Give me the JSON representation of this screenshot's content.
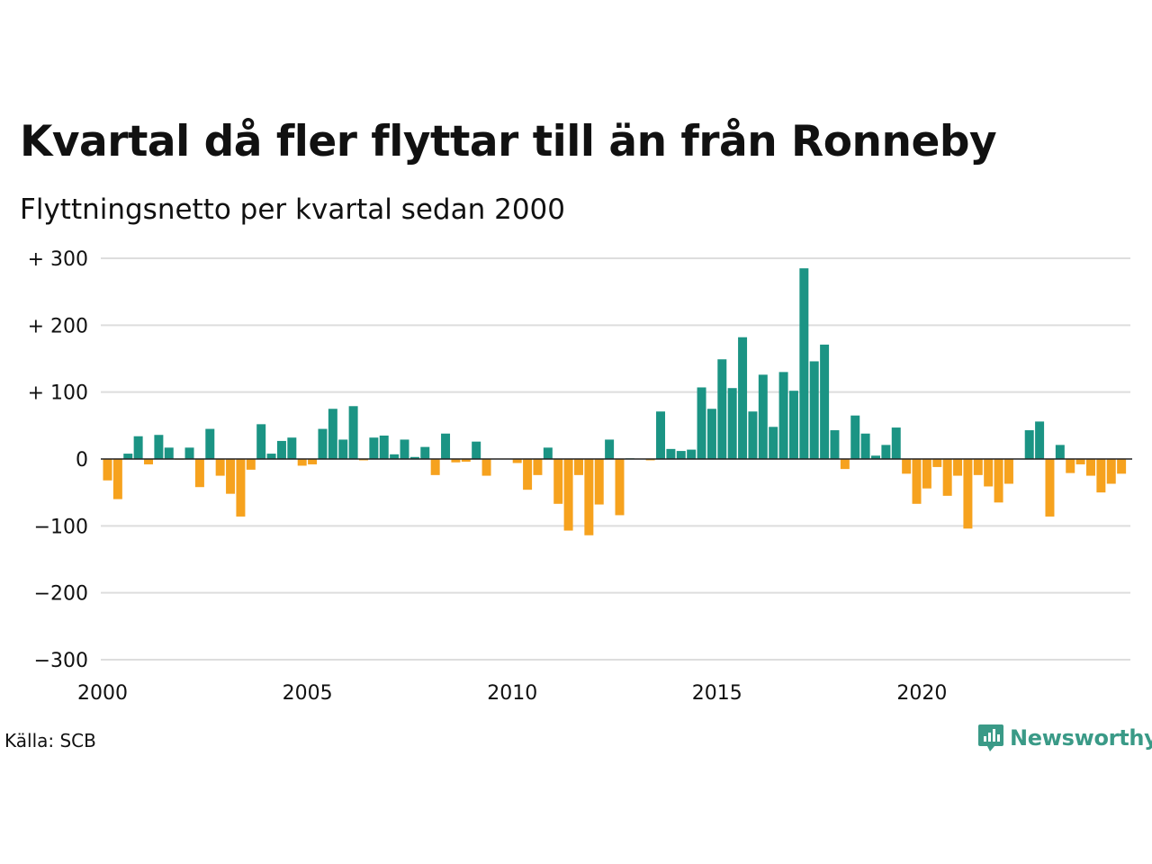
{
  "title": "Kvartal då fler flyttar till än från Ronneby",
  "subtitle": "Flyttningsnetto per kvartal sedan 2000",
  "source": "Källa: SCB",
  "brand": {
    "name": "Newsworthy",
    "icon": "newsworthy-logo-icon",
    "color": "#3a9a87"
  },
  "colors": {
    "positive": "#1b9484",
    "negative": "#f6a21e",
    "grid": "#dddddd",
    "zero": "#222222"
  },
  "chart_data": {
    "type": "bar",
    "ylim": [
      -300,
      300
    ],
    "yticks": [
      {
        "value": 300,
        "label": "+ 300"
      },
      {
        "value": 200,
        "label": "+ 200"
      },
      {
        "value": 100,
        "label": "+ 100"
      },
      {
        "value": 0,
        "label": "0"
      },
      {
        "value": -100,
        "label": "−100"
      },
      {
        "value": -200,
        "label": "−200"
      },
      {
        "value": -300,
        "label": "−300"
      }
    ],
    "xticks": [
      {
        "year": 2000,
        "label": "2000"
      },
      {
        "year": 2005,
        "label": "2005"
      },
      {
        "year": 2010,
        "label": "2010"
      },
      {
        "year": 2015,
        "label": "2015"
      },
      {
        "year": 2020,
        "label": "2020"
      }
    ],
    "start": "2000 Q1",
    "values": [
      -32,
      -60,
      8,
      34,
      -8,
      36,
      17,
      -1,
      17,
      -42,
      45,
      -25,
      -52,
      -86,
      -16,
      52,
      8,
      27,
      32,
      -10,
      -8,
      45,
      75,
      29,
      79,
      -2,
      32,
      35,
      7,
      29,
      3,
      18,
      -24,
      38,
      -5,
      -4,
      26,
      -25,
      0,
      0,
      -6,
      -46,
      -24,
      17,
      -67,
      -107,
      -24,
      -114,
      -68,
      29,
      -84,
      1,
      0,
      -2,
      71,
      15,
      12,
      14,
      107,
      75,
      149,
      106,
      182,
      71,
      126,
      48,
      130,
      102,
      285,
      146,
      171,
      43,
      -15,
      65,
      38,
      5,
      21,
      47,
      -22,
      -67,
      -44,
      -12,
      -55,
      -25,
      -104,
      -24,
      -41,
      -65,
      -37,
      0,
      43,
      56,
      -86,
      21,
      -21,
      -8,
      -25,
      -50,
      -37,
      -22
    ]
  }
}
